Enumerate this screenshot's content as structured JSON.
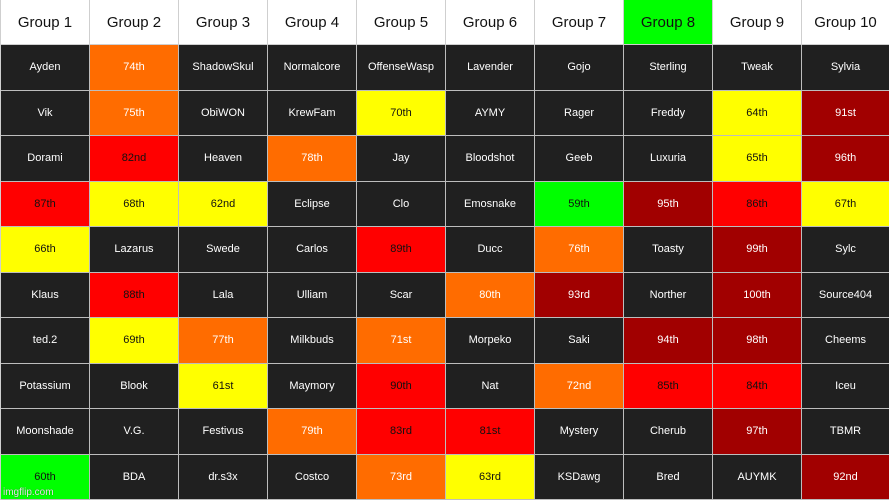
{
  "colors": {
    "dark": "#202020",
    "orange": "#ff6c00",
    "yellow": "#ffff00",
    "red": "#ff0000",
    "darkred": "#a10000",
    "green": "#00ff00",
    "white": "#ffffff"
  },
  "text_colors": {
    "dark": "#ffffff",
    "orange": "#ffffff",
    "yellow": "#111111",
    "red": "#111111",
    "darkred": "#ffffff",
    "green": "#111111",
    "white": "#111111"
  },
  "headers": [
    {
      "label": "Group 1",
      "color": "white"
    },
    {
      "label": "Group 2",
      "color": "white"
    },
    {
      "label": "Group 3",
      "color": "white"
    },
    {
      "label": "Group 4",
      "color": "white"
    },
    {
      "label": "Group 5",
      "color": "white"
    },
    {
      "label": "Group 6",
      "color": "white"
    },
    {
      "label": "Group 7",
      "color": "white"
    },
    {
      "label": "Group 8",
      "color": "green"
    },
    {
      "label": "Group 9",
      "color": "white"
    },
    {
      "label": "Group 10",
      "color": "white"
    }
  ],
  "rows": [
    [
      {
        "text": "Ayden",
        "color": "dark"
      },
      {
        "text": "74th",
        "color": "orange"
      },
      {
        "text": "ShadowSkul",
        "color": "dark"
      },
      {
        "text": "Normalcore",
        "color": "dark"
      },
      {
        "text": "OffenseWasp",
        "color": "dark"
      },
      {
        "text": "Lavender",
        "color": "dark"
      },
      {
        "text": "Gojo",
        "color": "dark"
      },
      {
        "text": "Sterling",
        "color": "dark"
      },
      {
        "text": "Tweak",
        "color": "dark"
      },
      {
        "text": "Sylvia",
        "color": "dark"
      }
    ],
    [
      {
        "text": "Vik",
        "color": "dark"
      },
      {
        "text": "75th",
        "color": "orange"
      },
      {
        "text": "ObiWON",
        "color": "dark"
      },
      {
        "text": "KrewFam",
        "color": "dark"
      },
      {
        "text": "70th",
        "color": "yellow"
      },
      {
        "text": "AYMY",
        "color": "dark"
      },
      {
        "text": "Rager",
        "color": "dark"
      },
      {
        "text": "Freddy",
        "color": "dark"
      },
      {
        "text": "64th",
        "color": "yellow"
      },
      {
        "text": "91st",
        "color": "darkred"
      }
    ],
    [
      {
        "text": "Dorami",
        "color": "dark"
      },
      {
        "text": "82nd",
        "color": "red"
      },
      {
        "text": "Heaven",
        "color": "dark"
      },
      {
        "text": "78th",
        "color": "orange"
      },
      {
        "text": "Jay",
        "color": "dark"
      },
      {
        "text": "Bloodshot",
        "color": "dark"
      },
      {
        "text": "Geeb",
        "color": "dark"
      },
      {
        "text": "Luxuria",
        "color": "dark"
      },
      {
        "text": "65th",
        "color": "yellow"
      },
      {
        "text": "96th",
        "color": "darkred"
      }
    ],
    [
      {
        "text": "87th",
        "color": "red"
      },
      {
        "text": "68th",
        "color": "yellow"
      },
      {
        "text": "62nd",
        "color": "yellow"
      },
      {
        "text": "Eclipse",
        "color": "dark"
      },
      {
        "text": "Clo",
        "color": "dark"
      },
      {
        "text": "Emosnake",
        "color": "dark"
      },
      {
        "text": "59th",
        "color": "green"
      },
      {
        "text": "95th",
        "color": "darkred"
      },
      {
        "text": "86th",
        "color": "red"
      },
      {
        "text": "67th",
        "color": "yellow"
      }
    ],
    [
      {
        "text": "66th",
        "color": "yellow"
      },
      {
        "text": "Lazarus",
        "color": "dark"
      },
      {
        "text": "Swede",
        "color": "dark"
      },
      {
        "text": "Carlos",
        "color": "dark"
      },
      {
        "text": "89th",
        "color": "red"
      },
      {
        "text": "Ducc",
        "color": "dark"
      },
      {
        "text": "76th",
        "color": "orange"
      },
      {
        "text": "Toasty",
        "color": "dark"
      },
      {
        "text": "99th",
        "color": "darkred"
      },
      {
        "text": "Sylc",
        "color": "dark"
      }
    ],
    [
      {
        "text": "Klaus",
        "color": "dark"
      },
      {
        "text": "88th",
        "color": "red"
      },
      {
        "text": "Lala",
        "color": "dark"
      },
      {
        "text": "Ulliam",
        "color": "dark"
      },
      {
        "text": "Scar",
        "color": "dark"
      },
      {
        "text": "80th",
        "color": "orange"
      },
      {
        "text": "93rd",
        "color": "darkred"
      },
      {
        "text": "Norther",
        "color": "dark"
      },
      {
        "text": "100th",
        "color": "darkred"
      },
      {
        "text": "Source404",
        "color": "dark"
      }
    ],
    [
      {
        "text": "ted.2",
        "color": "dark"
      },
      {
        "text": "69th",
        "color": "yellow"
      },
      {
        "text": "77th",
        "color": "orange"
      },
      {
        "text": "Milkbuds",
        "color": "dark"
      },
      {
        "text": "71st",
        "color": "orange"
      },
      {
        "text": "Morpeko",
        "color": "dark"
      },
      {
        "text": "Saki",
        "color": "dark"
      },
      {
        "text": "94th",
        "color": "darkred"
      },
      {
        "text": "98th",
        "color": "darkred"
      },
      {
        "text": "Cheems",
        "color": "dark"
      }
    ],
    [
      {
        "text": "Potassium",
        "color": "dark"
      },
      {
        "text": "Blook",
        "color": "dark"
      },
      {
        "text": "61st",
        "color": "yellow"
      },
      {
        "text": "Maymory",
        "color": "dark"
      },
      {
        "text": "90th",
        "color": "red"
      },
      {
        "text": "Nat",
        "color": "dark"
      },
      {
        "text": "72nd",
        "color": "orange"
      },
      {
        "text": "85th",
        "color": "red"
      },
      {
        "text": "84th",
        "color": "red"
      },
      {
        "text": "Iceu",
        "color": "dark"
      }
    ],
    [
      {
        "text": "Moonshade",
        "color": "dark"
      },
      {
        "text": "V.G.",
        "color": "dark"
      },
      {
        "text": "Festivus",
        "color": "dark"
      },
      {
        "text": "79th",
        "color": "orange"
      },
      {
        "text": "83rd",
        "color": "red"
      },
      {
        "text": "81st",
        "color": "red"
      },
      {
        "text": "Mystery",
        "color": "dark"
      },
      {
        "text": "Cherub",
        "color": "dark"
      },
      {
        "text": "97th",
        "color": "darkred"
      },
      {
        "text": "TBMR",
        "color": "dark"
      }
    ],
    [
      {
        "text": "60th",
        "color": "green"
      },
      {
        "text": "BDA",
        "color": "dark"
      },
      {
        "text": "dr.s3x",
        "color": "dark"
      },
      {
        "text": "Costco",
        "color": "dark"
      },
      {
        "text": "73rd",
        "color": "orange"
      },
      {
        "text": "63rd",
        "color": "yellow"
      },
      {
        "text": "KSDawg",
        "color": "dark"
      },
      {
        "text": "Bred",
        "color": "dark"
      },
      {
        "text": "AUYMK",
        "color": "dark"
      },
      {
        "text": "92nd",
        "color": "darkred"
      }
    ]
  ],
  "watermark": "imgflip.com"
}
